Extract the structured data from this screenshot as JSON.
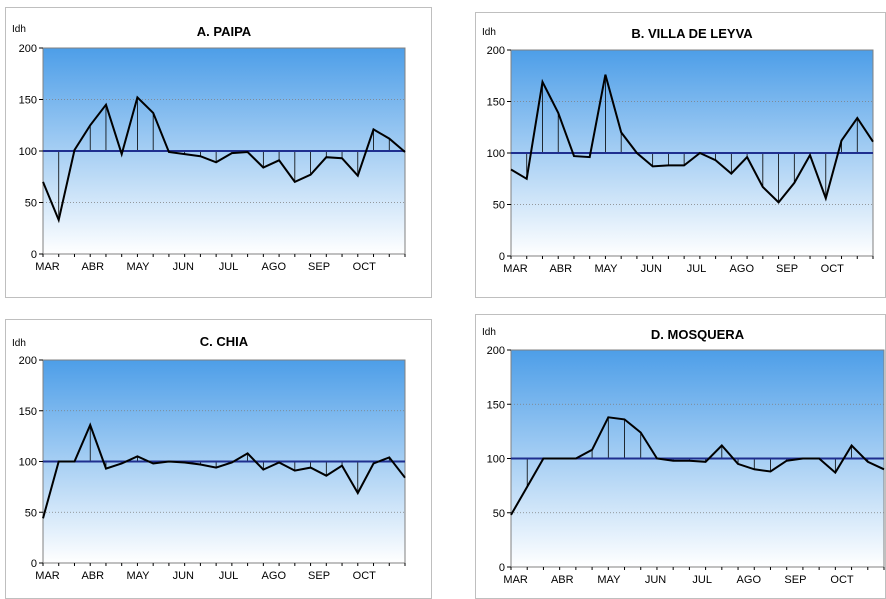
{
  "months": [
    "MAR",
    "ABR",
    "MAY",
    "JUN",
    "JUL",
    "AGO",
    "SEP",
    "OCT"
  ],
  "colors": {
    "line": "#000000",
    "baseline": "#1f2f8f",
    "grad_top": "#4d9ee8",
    "grad_bottom": "#ffffff"
  },
  "chart_data": [
    {
      "type": "line",
      "title": "A. PAIPA",
      "ylabel": "Idh",
      "ylim": [
        0,
        200
      ],
      "yticks": [
        0,
        50,
        100,
        150,
        200
      ],
      "baseline": 100,
      "values": [
        70,
        33,
        101,
        125,
        145,
        97,
        152,
        137,
        99,
        97,
        95,
        89,
        98,
        99,
        84,
        91,
        70,
        77,
        94,
        93,
        76,
        121,
        112,
        99
      ]
    },
    {
      "type": "line",
      "title": "B. VILLA DE LEYVA",
      "ylabel": "Idh",
      "ylim": [
        0,
        200
      ],
      "yticks": [
        0,
        50,
        100,
        150,
        200
      ],
      "baseline": 100,
      "values": [
        84,
        75,
        169,
        139,
        97,
        96,
        176,
        120,
        100,
        87,
        88,
        88,
        100,
        93,
        80,
        96,
        67,
        52,
        71,
        98,
        56,
        112,
        134,
        111
      ]
    },
    {
      "type": "line",
      "title": "C. CHIA",
      "ylabel": "Idh",
      "ylim": [
        0,
        200
      ],
      "yticks": [
        0,
        50,
        100,
        150,
        200
      ],
      "baseline": 100,
      "values": [
        44,
        100,
        100,
        136,
        93,
        98,
        105,
        98,
        100,
        99,
        97,
        94,
        99,
        108,
        92,
        99,
        91,
        94,
        86,
        96,
        69,
        98,
        104,
        84
      ]
    },
    {
      "type": "line",
      "title": "D. MOSQUERA",
      "ylabel": "Idh",
      "ylim": [
        0,
        200
      ],
      "yticks": [
        0,
        50,
        100,
        150,
        200
      ],
      "baseline": 100,
      "values": [
        48,
        74,
        100,
        100,
        100,
        108,
        138,
        136,
        124,
        100,
        98,
        98,
        97,
        112,
        95,
        90,
        88,
        98,
        100,
        100,
        87,
        112,
        97,
        90
      ]
    }
  ]
}
